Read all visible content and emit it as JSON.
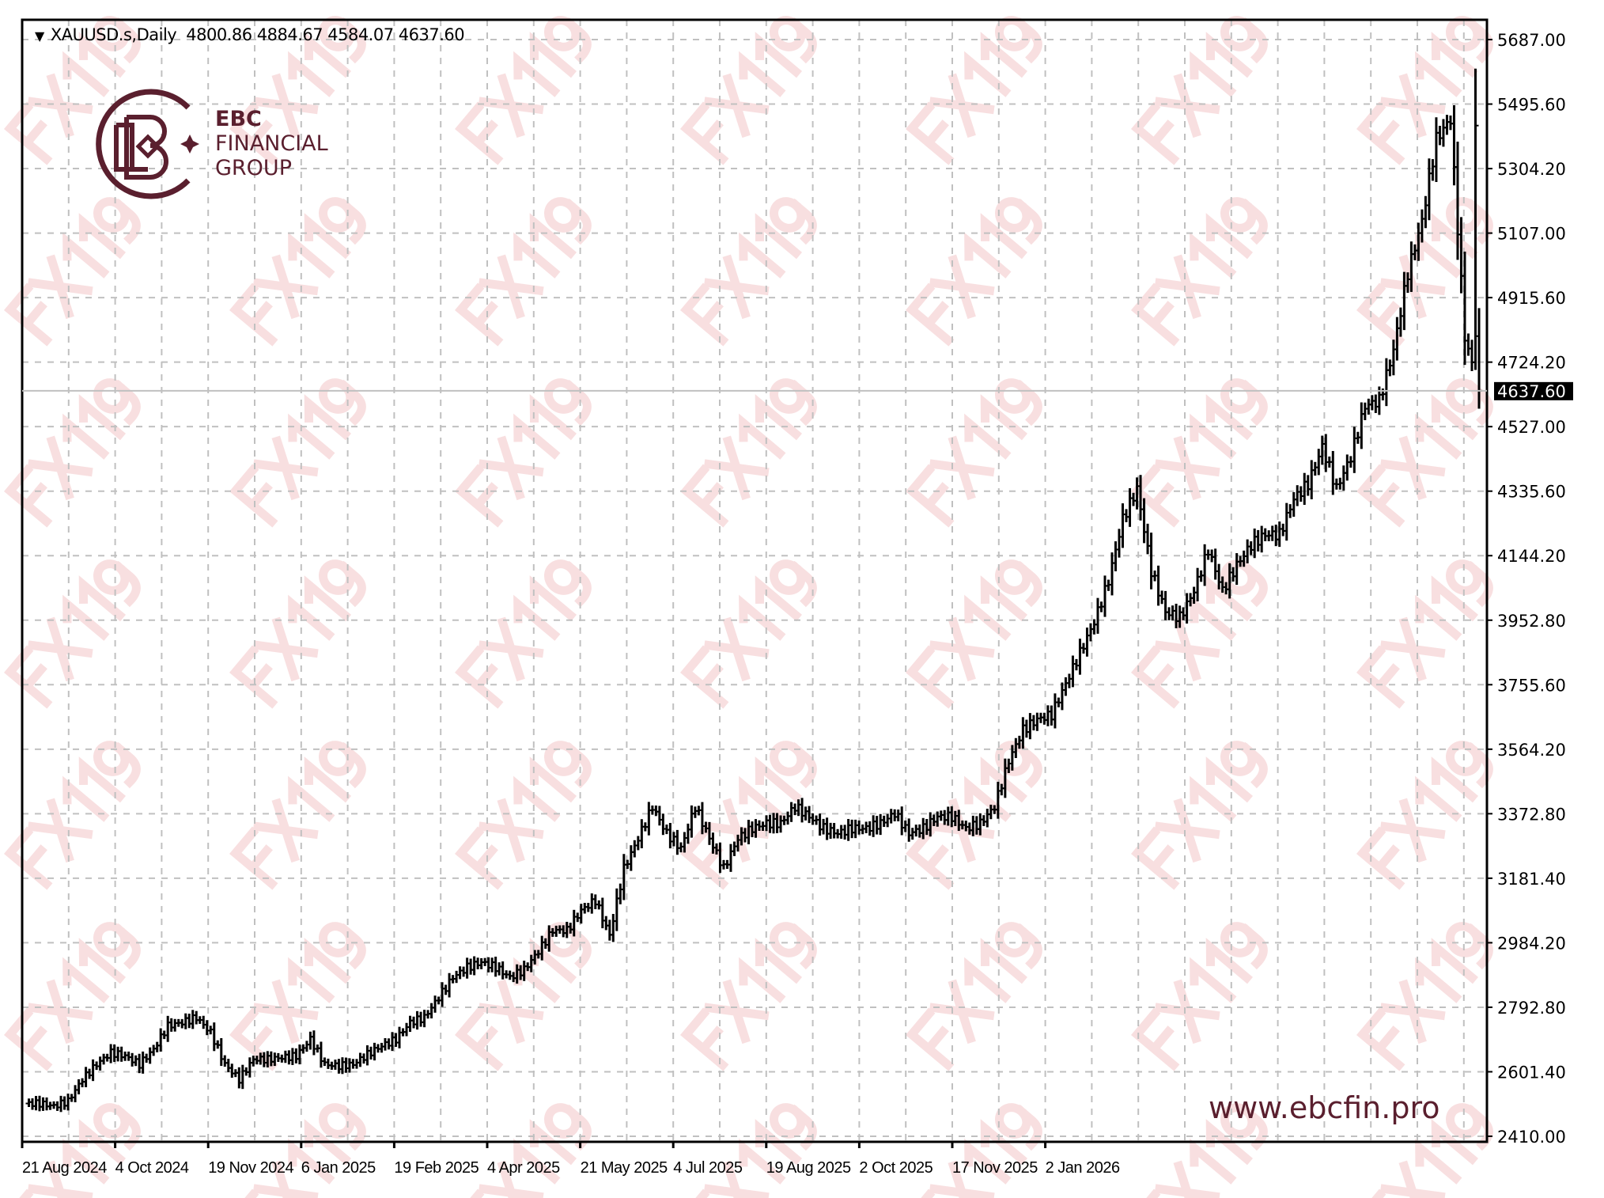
{
  "header": {
    "symbol": "XAUUSD.s,Daily",
    "ohlc_text": "4800.86 4884.67 4584.07 4637.60"
  },
  "branding": {
    "logo_line1": "EBC",
    "logo_line2": "FINANCIAL",
    "logo_line3": "GROUP",
    "website": "www.ebcfin.pro",
    "watermark": "FX119",
    "brand_color": "#5a1f2e",
    "watermark_color": "#f3c9cc"
  },
  "chart_data": {
    "type": "ohlc-bar",
    "symbol": "XAUUSD.s",
    "timeframe": "Daily",
    "ylim": [
      2410.0,
      5687.0
    ],
    "y_ticks": [
      "5687.00",
      "5495.60",
      "5304.20",
      "5107.00",
      "4915.60",
      "4724.20",
      "4527.00",
      "4335.60",
      "4144.20",
      "3952.80",
      "3755.60",
      "3564.20",
      "3372.80",
      "3181.40",
      "2984.20",
      "2792.80",
      "2601.40",
      "2410.00"
    ],
    "x_ticks": [
      "21 Aug 2024",
      "4 Oct 2024",
      "19 Nov 2024",
      "6 Jan 2025",
      "19 Feb 2025",
      "4 Apr 2025",
      "21 May 2025",
      "4 Jul 2025",
      "19 Aug 2025",
      "2 Oct 2025",
      "17 Nov 2025",
      "2 Jan 2026"
    ],
    "grid": true,
    "current_price": "4637.60",
    "last_bar": {
      "open": 4800.86,
      "high": 4884.67,
      "low": 4584.07,
      "close": 4637.6
    },
    "approx_closes": [
      2508,
      2508,
      2500,
      2515,
      2580,
      2625,
      2660,
      2650,
      2625,
      2670,
      2740,
      2750,
      2765,
      2720,
      2625,
      2580,
      2640,
      2640,
      2645,
      2650,
      2700,
      2625,
      2620,
      2625,
      2655,
      2680,
      2700,
      2750,
      2765,
      2825,
      2885,
      2915,
      2930,
      2915,
      2885,
      2908,
      2963,
      3025,
      3025,
      3085,
      3115,
      3010,
      3210,
      3300,
      3395,
      3315,
      3270,
      3395,
      3300,
      3210,
      3300,
      3330,
      3345,
      3345,
      3395,
      3365,
      3330,
      3315,
      3330,
      3330,
      3345,
      3375,
      3315,
      3330,
      3365,
      3365,
      3330,
      3345,
      3395,
      3532,
      3625,
      3655,
      3670,
      3762,
      3855,
      3947,
      4070,
      4255,
      4345,
      4100,
      3977,
      3960,
      4040,
      4162,
      4040,
      4117,
      4177,
      4208,
      4208,
      4315,
      4360,
      4470,
      4345,
      4440,
      4592,
      4608,
      4760,
      4990,
      5145,
      5390,
      5450,
      4800,
      4637.6
    ],
    "colors": {
      "bars": "#000000",
      "grid": "#c0c0c0",
      "price_line": "#c0c0c0",
      "price_label_bg": "#000000"
    }
  }
}
